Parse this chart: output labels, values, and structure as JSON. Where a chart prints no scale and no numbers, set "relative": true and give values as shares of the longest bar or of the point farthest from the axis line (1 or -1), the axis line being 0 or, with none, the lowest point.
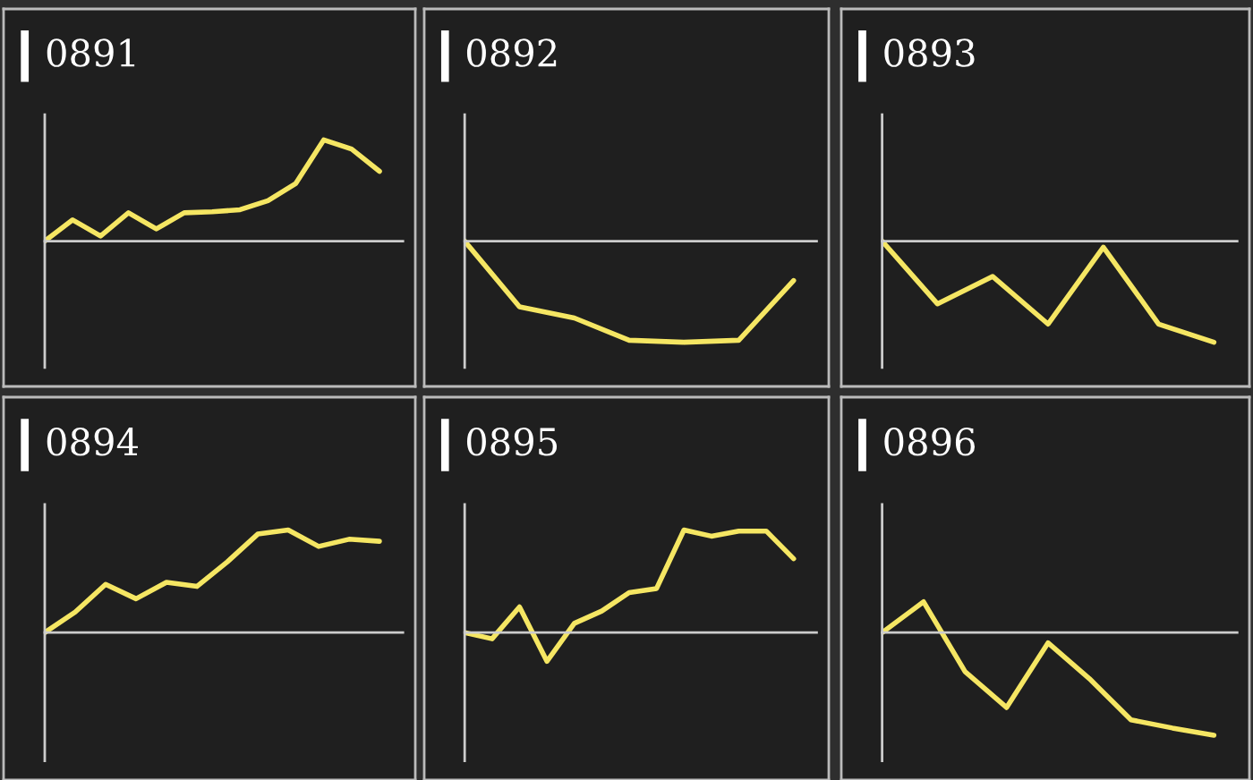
{
  "chart_data": [
    {
      "type": "line",
      "title": "0891",
      "relative": true,
      "categories": [
        null,
        null,
        null,
        null,
        null,
        null,
        null,
        null,
        null,
        null,
        null,
        null,
        null
      ],
      "series": [
        {
          "color": "#f5e663",
          "values": [
            0,
            0.21,
            0.05,
            0.28,
            0.12,
            0.28,
            0.29,
            0.31,
            0.4,
            0.57,
            1.0,
            0.91,
            0.69
          ]
        }
      ]
    },
    {
      "type": "line",
      "title": "0892",
      "relative": true,
      "categories": [
        null,
        null,
        null,
        null,
        null,
        null,
        null
      ],
      "series": [
        {
          "color": "#f5e663",
          "values": [
            0,
            -0.65,
            -0.76,
            -0.98,
            -1.0,
            -0.98,
            -0.39
          ]
        }
      ]
    },
    {
      "type": "line",
      "title": "0893",
      "relative": true,
      "categories": [
        null,
        null,
        null,
        null,
        null,
        null,
        null
      ],
      "series": [
        {
          "color": "#f5e663",
          "values": [
            0,
            -0.62,
            -0.35,
            -0.82,
            -0.06,
            -0.82,
            -1.0
          ]
        }
      ]
    },
    {
      "type": "line",
      "title": "0894",
      "relative": true,
      "categories": [
        null,
        null,
        null,
        null,
        null,
        null,
        null,
        null,
        null,
        null,
        null,
        null
      ],
      "series": [
        {
          "color": "#f5e663",
          "values": [
            0,
            0.2,
            0.47,
            0.33,
            0.49,
            0.45,
            0.69,
            0.96,
            1.0,
            0.84,
            0.91,
            0.89
          ]
        }
      ]
    },
    {
      "type": "line",
      "title": "0895",
      "relative": true,
      "categories": [
        null,
        null,
        null,
        null,
        null,
        null,
        null,
        null,
        null,
        null,
        null,
        null,
        null
      ],
      "series": [
        {
          "color": "#f5e663",
          "values": [
            0,
            -0.06,
            0.25,
            -0.28,
            0.09,
            0.21,
            0.39,
            0.43,
            1.0,
            0.94,
            0.99,
            0.99,
            0.72
          ]
        }
      ]
    },
    {
      "type": "line",
      "title": "0896",
      "relative": true,
      "categories": [
        null,
        null,
        null,
        null,
        null,
        null,
        null,
        null,
        null
      ],
      "series": [
        {
          "color": "#f5e663",
          "values": [
            0,
            0.3,
            -0.38,
            -0.73,
            -0.1,
            -0.45,
            -0.85,
            -0.93,
            -1.0
          ]
        }
      ]
    }
  ]
}
